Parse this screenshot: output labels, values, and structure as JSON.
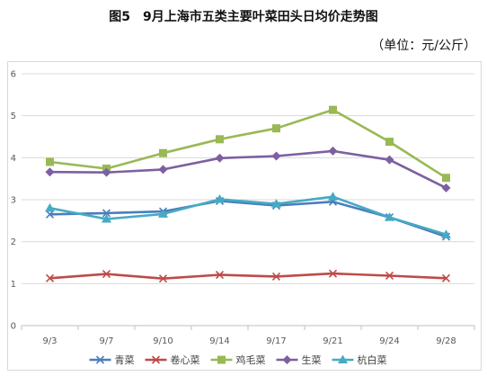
{
  "title": "图5　9月上海市五类主要叶菜田头日均价走势图",
  "unit": "（单位：元/公斤）",
  "chart_data": {
    "type": "line",
    "title": "图5　9月上海市五类主要叶菜田头日均价走势图",
    "unit_label": "（单位：元/公斤）",
    "categories": [
      "9/3",
      "9/7",
      "9/10",
      "9/14",
      "9/17",
      "9/21",
      "9/24",
      "9/28"
    ],
    "ylim": [
      0,
      6
    ],
    "yticks": [
      "0",
      "1",
      "2",
      "3",
      "4",
      "5",
      "6"
    ],
    "grid": true,
    "legend_position": "bottom",
    "series": [
      {
        "name": "青菜",
        "color": "#4a7ebb",
        "marker": "x",
        "values": [
          2.65,
          2.68,
          2.72,
          2.97,
          2.86,
          2.95,
          2.58,
          2.12
        ]
      },
      {
        "name": "卷心菜",
        "color": "#be4b48",
        "marker": "x",
        "values": [
          1.13,
          1.23,
          1.12,
          1.21,
          1.17,
          1.24,
          1.19,
          1.13
        ]
      },
      {
        "name": "鸡毛菜",
        "color": "#98b954",
        "marker": "square",
        "values": [
          3.9,
          3.74,
          4.11,
          4.44,
          4.7,
          5.14,
          4.38,
          3.52
        ]
      },
      {
        "name": "生菜",
        "color": "#7d60a0",
        "marker": "diamond",
        "values": [
          3.66,
          3.65,
          3.72,
          3.99,
          4.04,
          4.16,
          3.95,
          3.28
        ]
      },
      {
        "name": "杭白菜",
        "color": "#46aac4",
        "marker": "triangle",
        "values": [
          2.8,
          2.54,
          2.66,
          3.01,
          2.9,
          3.07,
          2.58,
          2.17
        ]
      }
    ]
  }
}
